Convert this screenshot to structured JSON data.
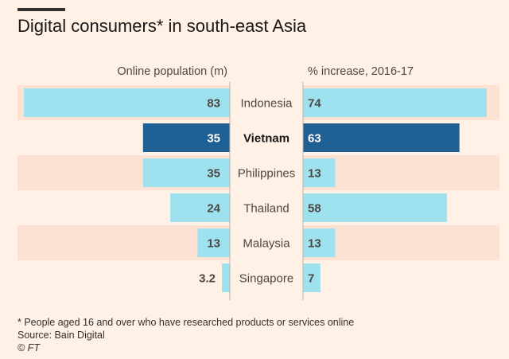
{
  "title": "Digital consumers* in south-east Asia",
  "footnote": "* People aged 16 and over who have researched products or services online",
  "source": "Source: Bain Digital",
  "credit": "© FT",
  "colors": {
    "background": "#fff1e5",
    "band": "#fde1d2",
    "bar_light": "#9ee2f0",
    "bar_highlight": "#1e5f94",
    "text_dark": "#4d4845"
  },
  "chart_data": {
    "type": "bar",
    "orientation": "horizontal-butterfly",
    "left_header": "Online population (m)",
    "right_header": "% increase, 2016-17",
    "categories": [
      "Indonesia",
      "Vietnam",
      "Philippines",
      "Thailand",
      "Malaysia",
      "Singapore"
    ],
    "highlight": "Vietnam",
    "series": [
      {
        "name": "Online population (m)",
        "values": [
          83,
          35,
          35,
          24,
          13,
          3.2
        ],
        "labels": [
          "83",
          "35",
          "35",
          "24",
          "13",
          "3.2"
        ]
      },
      {
        "name": "% increase, 2016-17",
        "values": [
          74,
          63,
          13,
          58,
          13,
          7
        ],
        "labels": [
          "74",
          "63",
          "13",
          "58",
          "13",
          "7"
        ]
      }
    ]
  }
}
